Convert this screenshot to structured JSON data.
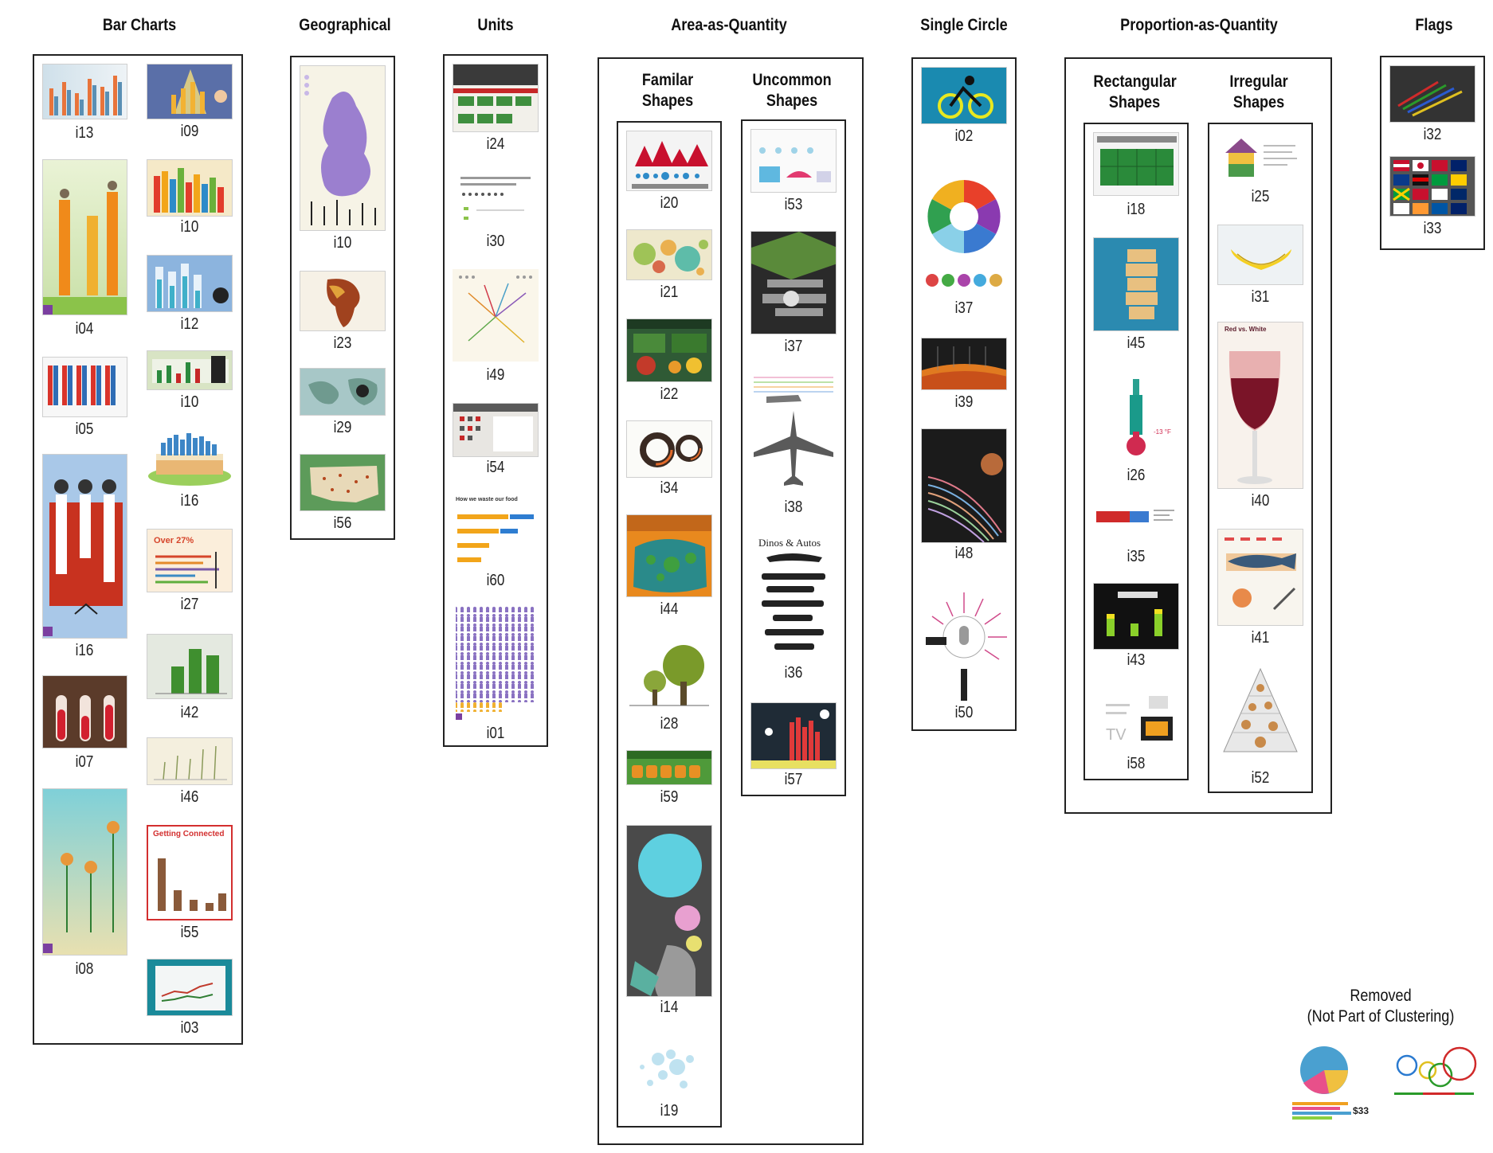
{
  "sections": {
    "bar_charts": "Bar Charts",
    "geographical": "Geographical",
    "units": "Units",
    "area_as_quantity": "Area-as-Quantity",
    "familiar_shapes": "Familar\nShapes",
    "uncommon_shapes": "Uncommon\nShapes",
    "single_circle": "Single Circle",
    "proportion_as_quantity": "Proportion-as-Quantity",
    "rectangular_shapes": "Rectangular\nShapes",
    "irregular_shapes": "Irregular\nShapes",
    "flags": "Flags",
    "removed": "Removed\n(Not Part of Clustering)"
  },
  "thumbnails": {
    "bar_left": [
      "i13",
      "i04",
      "i05",
      "i16",
      "i07",
      "i08"
    ],
    "bar_right": [
      "i09",
      "i10",
      "i12",
      "i10",
      "i16",
      "i27",
      "i42",
      "i46",
      "i55",
      "i03"
    ],
    "geo": [
      "i10",
      "i23",
      "i29",
      "i56"
    ],
    "units": [
      "i24",
      "i30",
      "i49",
      "i54",
      "i60",
      "i01"
    ],
    "familiar": [
      "i20",
      "i21",
      "i22",
      "i34",
      "i44",
      "i28",
      "i59",
      "i14",
      "i19"
    ],
    "uncommon": [
      "i53",
      "i37",
      "i38",
      "i36",
      "i57"
    ],
    "single_circle": [
      "i02",
      "i37",
      "i39",
      "i48",
      "i50"
    ],
    "rectangular": [
      "i18",
      "i45",
      "i26",
      "i35",
      "i43",
      "i58"
    ],
    "irregular": [
      "i25",
      "i31",
      "i40",
      "i41",
      "i52"
    ],
    "flags": [
      "i32",
      "i33"
    ]
  },
  "thumbnail_text": {
    "i55_banner": "Getting Connected",
    "i27_headline": "Over 27%",
    "i36_header": "Dinos & Autos",
    "i40_header": "Red vs. White",
    "i60_header": "How we waste our food",
    "i58_tv": "TV",
    "i26_temp": "-13 °F",
    "removed_amount": "$33"
  },
  "colors": {
    "border": "#222222",
    "background": "#ffffff"
  }
}
